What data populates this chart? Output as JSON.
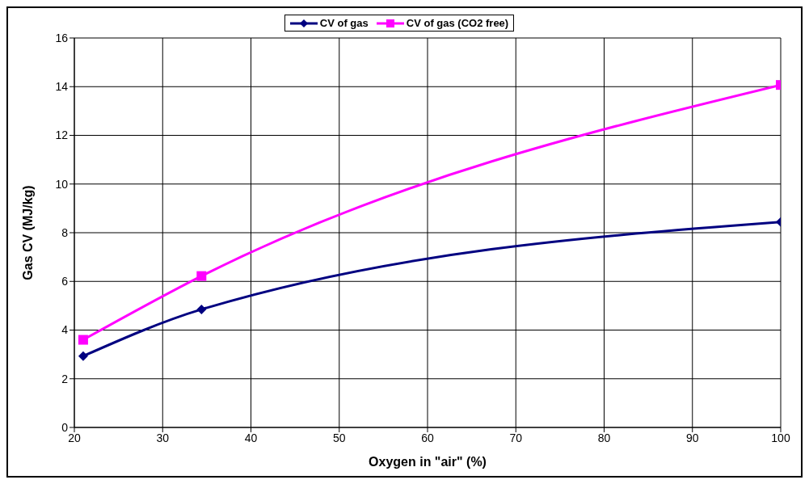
{
  "chart_data": {
    "type": "line",
    "xlabel": "Oxygen in \"air\" (%)",
    "ylabel": "Gas CV (MJ/kg)",
    "x": [
      21,
      34.4,
      100
    ],
    "series": [
      {
        "name": "CV of gas",
        "color": "#000080",
        "marker": "diamond",
        "values": [
          2.93,
          4.85,
          8.44
        ]
      },
      {
        "name": "CV of gas (CO2 free)",
        "color": "#ff00ff",
        "marker": "square",
        "values": [
          3.6,
          6.22,
          14.07
        ]
      }
    ],
    "xlim": [
      20,
      100
    ],
    "xticks": [
      20,
      30,
      40,
      50,
      60,
      70,
      80,
      90,
      100
    ],
    "ylim": [
      0,
      16
    ],
    "yticks": [
      0,
      2,
      4,
      6,
      8,
      10,
      12,
      14,
      16
    ],
    "grid": true,
    "legend": "top",
    "line_style": "solid"
  }
}
